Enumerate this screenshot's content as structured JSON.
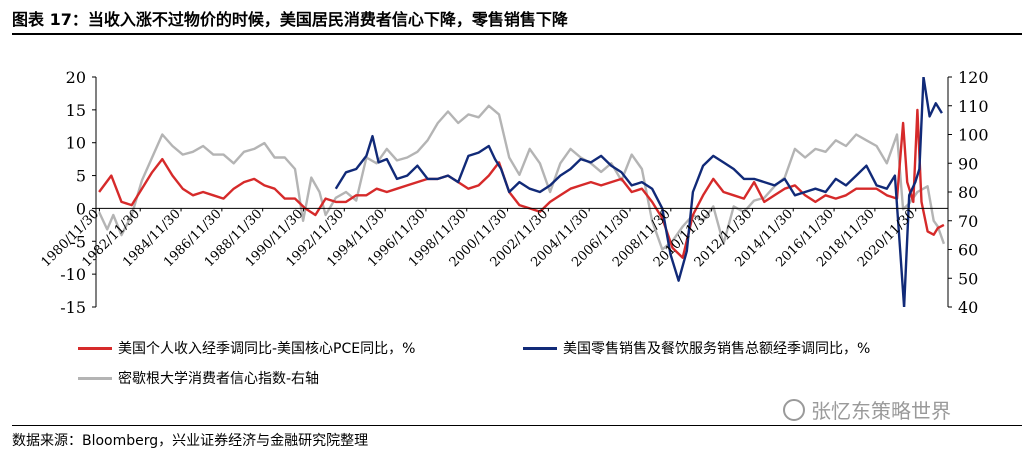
{
  "title": "图表 17：当收入涨不过物价的时候，美国居民消费者信心下降，零售销售下降",
  "source": "数据来源：Bloomberg，兴业证券经济与金融研究院整理",
  "watermark": "张忆东策略世界",
  "chart_data": {
    "type": "line",
    "title": "",
    "ylim_left": [
      -15,
      20
    ],
    "yticks_left": [
      -15,
      -10,
      -5,
      0,
      5,
      10,
      15,
      20
    ],
    "ylim_right": [
      40,
      120
    ],
    "yticks_right": [
      40,
      50,
      60,
      70,
      80,
      90,
      100,
      110,
      120
    ],
    "xlim": [
      1980.75,
      2022.5
    ],
    "x_tick_labels": [
      "1980/11/30",
      "1982/11/30",
      "1984/11/30",
      "1986/11/30",
      "1988/11/30",
      "1990/11/30",
      "1992/11/30",
      "1994/11/30",
      "1996/11/30",
      "1998/11/30",
      "2000/11/30",
      "2002/11/30",
      "2004/11/30",
      "2006/11/30",
      "2008/11/30",
      "2010/11/30",
      "2012/11/30",
      "2014/11/30",
      "2016/11/30",
      "2018/11/30",
      "2020/11/30"
    ],
    "x_tick_positions": [
      1980.917,
      1982.917,
      1984.917,
      1986.917,
      1988.917,
      1990.917,
      1992.917,
      1994.917,
      1996.917,
      1998.917,
      2000.917,
      2002.917,
      2004.917,
      2006.917,
      2008.917,
      2010.917,
      2012.917,
      2014.917,
      2016.917,
      2018.917,
      2020.917
    ],
    "legend": "bottom",
    "series": [
      {
        "name": "美国个人收入经季调同比-美国核心PCE同比，%",
        "axis": "left",
        "color": "#d62a2a",
        "x": [
          1980.9,
          1981.5,
          1982.0,
          1982.5,
          1983.0,
          1983.5,
          1984.0,
          1984.5,
          1985.0,
          1985.5,
          1986.0,
          1986.5,
          1987.0,
          1987.5,
          1988.0,
          1988.5,
          1989.0,
          1989.5,
          1990.0,
          1990.5,
          1991.0,
          1991.5,
          1992.0,
          1992.5,
          1993.0,
          1993.5,
          1994.0,
          1994.5,
          1995.0,
          1995.5,
          1996.0,
          1996.5,
          1997.0,
          1997.5,
          1998.0,
          1998.5,
          1999.0,
          1999.5,
          2000.0,
          2000.5,
          2001.0,
          2001.5,
          2002.0,
          2002.5,
          2003.0,
          2003.5,
          2004.0,
          2004.5,
          2005.0,
          2005.5,
          2006.0,
          2006.5,
          2007.0,
          2007.5,
          2008.0,
          2008.5,
          2009.0,
          2009.5,
          2010.0,
          2010.5,
          2011.0,
          2011.5,
          2012.0,
          2012.5,
          2013.0,
          2013.5,
          2014.0,
          2014.5,
          2015.0,
          2015.5,
          2016.0,
          2016.5,
          2017.0,
          2017.5,
          2018.0,
          2018.5,
          2019.0,
          2019.5,
          2020.0,
          2020.3,
          2020.5,
          2020.8,
          2021.0,
          2021.2,
          2021.5,
          2021.8,
          2022.0,
          2022.3
        ],
        "values": [
          2.5,
          5.0,
          1.0,
          0.5,
          3.0,
          5.5,
          7.5,
          5.0,
          3.0,
          2.0,
          2.5,
          2.0,
          1.5,
          3.0,
          4.0,
          4.5,
          3.5,
          3.0,
          1.5,
          1.5,
          0.0,
          -1.0,
          1.5,
          1.0,
          1.0,
          2.0,
          2.0,
          3.0,
          2.5,
          3.0,
          3.5,
          4.0,
          4.5,
          4.5,
          5.0,
          4.0,
          3.0,
          3.5,
          5.0,
          7.0,
          2.5,
          0.5,
          0.0,
          -0.5,
          1.0,
          2.0,
          3.0,
          3.5,
          4.0,
          3.5,
          4.0,
          4.5,
          2.5,
          3.0,
          1.0,
          -1.5,
          -6.0,
          -7.5,
          -1.0,
          2.0,
          4.5,
          2.5,
          2.0,
          1.5,
          4.0,
          1.0,
          2.0,
          3.0,
          3.5,
          2.0,
          1.0,
          2.0,
          1.5,
          2.0,
          3.0,
          3.0,
          3.0,
          2.0,
          1.5,
          13.0,
          4.0,
          1.0,
          15.0,
          1.0,
          -3.5,
          -4.0,
          -3.0,
          -2.5
        ]
      },
      {
        "name": "美国零售销售及餐饮服务销售总额经季调同比，%",
        "axis": "left",
        "color": "#112a78",
        "x": [
          1992.5,
          1993.0,
          1993.5,
          1994.0,
          1994.3,
          1994.6,
          1995.0,
          1995.5,
          1996.0,
          1996.5,
          1997.0,
          1997.5,
          1998.0,
          1998.5,
          1999.0,
          1999.5,
          2000.0,
          2000.3,
          2000.6,
          2001.0,
          2001.5,
          2002.0,
          2002.5,
          2003.0,
          2003.5,
          2004.0,
          2004.5,
          2005.0,
          2005.5,
          2006.0,
          2006.5,
          2007.0,
          2007.5,
          2008.0,
          2008.5,
          2008.9,
          2009.3,
          2009.7,
          2010.0,
          2010.5,
          2011.0,
          2011.5,
          2012.0,
          2012.5,
          2013.0,
          2013.5,
          2014.0,
          2014.5,
          2015.0,
          2015.5,
          2016.0,
          2016.5,
          2017.0,
          2017.5,
          2018.0,
          2018.5,
          2019.0,
          2019.5,
          2019.9,
          2020.15,
          2020.35,
          2020.6,
          2020.9,
          2021.1,
          2021.3,
          2021.6,
          2021.9,
          2022.2
        ],
        "values": [
          3.0,
          5.5,
          6.0,
          8.0,
          11.0,
          7.0,
          7.5,
          4.5,
          5.0,
          6.5,
          4.5,
          4.5,
          5.0,
          4.0,
          8.0,
          8.5,
          9.5,
          7.5,
          6.0,
          2.5,
          4.0,
          3.0,
          2.5,
          3.5,
          5.0,
          6.0,
          7.5,
          7.0,
          8.0,
          6.5,
          5.5,
          3.5,
          4.0,
          3.0,
          0.0,
          -7.0,
          -11.0,
          -6.5,
          2.5,
          6.5,
          8.0,
          7.0,
          6.0,
          4.5,
          4.5,
          4.0,
          3.5,
          4.5,
          2.0,
          2.5,
          3.0,
          2.5,
          4.5,
          3.5,
          5.0,
          6.5,
          3.5,
          3.0,
          5.0,
          -6.0,
          -15.0,
          2.0,
          4.0,
          6.0,
          20.0,
          14.0,
          16.0,
          14.5
        ]
      },
      {
        "name": "密歇根大学消费者信心指数-右轴",
        "axis": "right",
        "color": "#b4b4b4",
        "x": [
          1980.9,
          1981.3,
          1981.6,
          1982.0,
          1982.5,
          1983.0,
          1983.5,
          1984.0,
          1984.5,
          1985.0,
          1985.5,
          1986.0,
          1986.5,
          1987.0,
          1987.5,
          1988.0,
          1988.5,
          1989.0,
          1989.5,
          1990.0,
          1990.5,
          1990.9,
          1991.3,
          1991.7,
          1992.0,
          1992.5,
          1993.0,
          1993.5,
          1994.0,
          1994.5,
          1995.0,
          1995.5,
          1996.0,
          1996.5,
          1997.0,
          1997.5,
          1998.0,
          1998.5,
          1999.0,
          1999.5,
          2000.0,
          2000.5,
          2001.0,
          2001.5,
          2002.0,
          2002.5,
          2003.0,
          2003.5,
          2004.0,
          2004.5,
          2005.0,
          2005.5,
          2006.0,
          2006.5,
          2007.0,
          2007.5,
          2008.0,
          2008.5,
          2009.0,
          2009.5,
          2010.0,
          2010.5,
          2011.0,
          2011.5,
          2012.0,
          2012.5,
          2013.0,
          2013.5,
          2014.0,
          2014.5,
          2015.0,
          2015.5,
          2016.0,
          2016.5,
          2017.0,
          2017.5,
          2018.0,
          2018.5,
          2019.0,
          2019.5,
          2020.0,
          2020.3,
          2020.6,
          2021.0,
          2021.5,
          2021.8,
          2022.0,
          2022.3
        ],
        "values": [
          73,
          67,
          72,
          65,
          72,
          84,
          92,
          100,
          96,
          93,
          94,
          96,
          93,
          93,
          90,
          94,
          95,
          97,
          92,
          92,
          88,
          70,
          85,
          80,
          72,
          78,
          80,
          77,
          92,
          90,
          95,
          91,
          92,
          94,
          98,
          104,
          108,
          104,
          107,
          106,
          110,
          107,
          92,
          86,
          95,
          90,
          80,
          90,
          95,
          92,
          90,
          87,
          90,
          84,
          93,
          88,
          70,
          60,
          63,
          68,
          72,
          70,
          75,
          62,
          75,
          73,
          77,
          78,
          82,
          85,
          95,
          92,
          95,
          94,
          98,
          96,
          100,
          98,
          96,
          90,
          100,
          74,
          76,
          80,
          82,
          70,
          68,
          62
        ]
      }
    ]
  }
}
